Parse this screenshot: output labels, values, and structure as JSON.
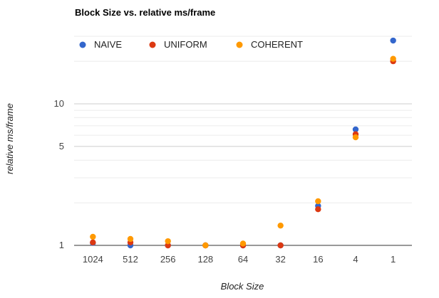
{
  "chart_data": {
    "type": "scatter",
    "title": "Block Size vs. relative ms/frame",
    "xlabel": "Block Size",
    "ylabel": "relative ms/frame",
    "y_scale": "log",
    "ylim": [
      0.93,
      40
    ],
    "y_ticks": [
      "1",
      "5",
      "10"
    ],
    "grid": true,
    "legend_position": "top",
    "categories": [
      "1024",
      "512",
      "256",
      "128",
      "64",
      "32",
      "16",
      "4",
      "1"
    ],
    "series": [
      {
        "name": "NAIVE",
        "color": "#3366cc",
        "values": [
          1.04,
          1.0,
          1.0,
          1.0,
          1.0,
          1.0,
          1.9,
          6.6,
          28.0
        ]
      },
      {
        "name": "UNIFORM",
        "color": "#dc3912",
        "values": [
          1.05,
          1.05,
          1.0,
          1.0,
          1.0,
          1.0,
          1.8,
          6.1,
          20.0
        ]
      },
      {
        "name": "COHERENT",
        "color": "#ff9900",
        "values": [
          1.15,
          1.11,
          1.07,
          1.0,
          1.03,
          1.38,
          2.05,
          5.8,
          20.8
        ]
      }
    ]
  }
}
